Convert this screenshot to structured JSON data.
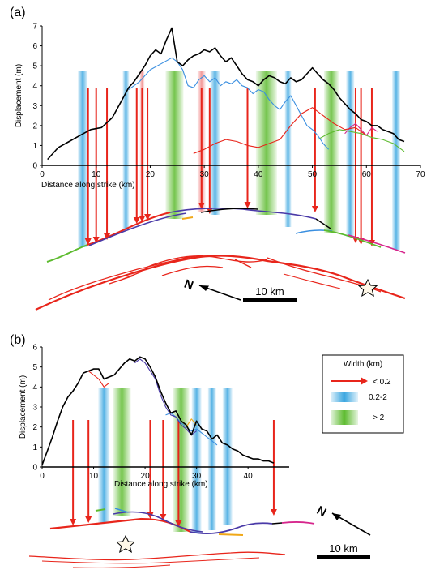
{
  "panels": [
    {
      "id": "a",
      "panel_label": "(a)",
      "scale_label": "10 km",
      "north_label": "N"
    },
    {
      "id": "b",
      "panel_label": "(b)",
      "scale_label": "10 km",
      "north_label": "N"
    }
  ],
  "legend": {
    "title": "Width (km)",
    "items": [
      {
        "label": "< 0.2",
        "kind": "arrow",
        "color": "#e8251b"
      },
      {
        "label": "0.2-2",
        "kind": "band",
        "color": "#3aa6e0"
      },
      {
        "label": "> 2",
        "kind": "band",
        "color": "#5dbb2f"
      }
    ]
  },
  "colors": {
    "total": "#000000",
    "red": "#e8251b",
    "blue": "#3a8fe0",
    "green": "#5dbb2f",
    "purple": "#4a3aa8",
    "orange": "#f0a818",
    "magenta": "#d6268c",
    "fault_map": "#e8251b"
  },
  "chart_data": [
    {
      "type": "line",
      "panel": "a",
      "xlabel": "Distance along strike (km)",
      "ylabel": "Displacement (m)",
      "xlim": [
        0,
        70
      ],
      "ylim": [
        0,
        7
      ],
      "xticks": [
        0,
        10,
        20,
        30,
        40,
        50,
        60,
        70
      ],
      "yticks": [
        0,
        1,
        2,
        3,
        4,
        5,
        6,
        7
      ],
      "series": [
        {
          "color": "#000000",
          "x": [
            1,
            3,
            5,
            7,
            9,
            11,
            13,
            15,
            16,
            17,
            18,
            19,
            20,
            21,
            22,
            23,
            24,
            25,
            26,
            27,
            28,
            29,
            30,
            31,
            32,
            33,
            34,
            35,
            36,
            37,
            38,
            39,
            40,
            41,
            42,
            43,
            44,
            45,
            46,
            47,
            48,
            49,
            50,
            51,
            52,
            53,
            54,
            55,
            56,
            57,
            58,
            59,
            60,
            61,
            62,
            63,
            64,
            65,
            66,
            67
          ],
          "y": [
            0.3,
            0.9,
            1.2,
            1.5,
            1.8,
            1.9,
            2.4,
            3.4,
            3.9,
            4.2,
            4.6,
            5.0,
            5.5,
            5.8,
            5.6,
            6.3,
            6.9,
            5.2,
            5.0,
            5.3,
            5.5,
            5.6,
            5.8,
            5.7,
            5.9,
            5.5,
            5.2,
            5.4,
            5.0,
            4.6,
            4.3,
            4.2,
            4.0,
            4.3,
            4.5,
            4.4,
            4.2,
            4.1,
            4.4,
            4.2,
            4.3,
            4.6,
            4.9,
            4.6,
            4.3,
            4.1,
            3.8,
            3.4,
            3.1,
            2.8,
            2.6,
            2.3,
            2.2,
            2.0,
            2.0,
            1.8,
            1.7,
            1.6,
            1.3,
            1.2
          ]
        },
        {
          "color": "#3a8fe0",
          "x": [
            16,
            18,
            20,
            22,
            24,
            25,
            26,
            27,
            28,
            29,
            30,
            31,
            32,
            33,
            34,
            35,
            36,
            37,
            38,
            39,
            40,
            41,
            42,
            43,
            44,
            45,
            46,
            47,
            48,
            49,
            50,
            51,
            52,
            53
          ],
          "y": [
            3.8,
            4.2,
            4.8,
            5.1,
            5.4,
            5.2,
            4.8,
            4.0,
            3.9,
            4.3,
            4.5,
            4.2,
            4.4,
            4.0,
            4.2,
            4.1,
            4.3,
            4.0,
            3.9,
            3.6,
            3.8,
            3.7,
            3.3,
            3.0,
            2.8,
            3.2,
            3.5,
            3.0,
            2.5,
            2.0,
            1.8,
            1.5,
            1.1,
            0.8
          ]
        },
        {
          "color": "#e8251b",
          "x": [
            28,
            30,
            32,
            34,
            36,
            38,
            40,
            42,
            44,
            46,
            48,
            50,
            52,
            54,
            56,
            58,
            60
          ],
          "y": [
            0.6,
            0.8,
            1.1,
            1.3,
            1.2,
            1.0,
            0.9,
            1.1,
            1.3,
            2.0,
            2.6,
            2.9,
            2.5,
            2.1,
            1.8,
            1.9,
            1.5
          ]
        },
        {
          "color": "#5dbb2f",
          "x": [
            51,
            53,
            55,
            57,
            59,
            61,
            63,
            65,
            66,
            67
          ],
          "y": [
            1.3,
            1.6,
            1.8,
            1.7,
            1.6,
            1.4,
            1.3,
            1.1,
            0.9,
            0.7
          ]
        },
        {
          "color": "#d6268c",
          "x": [
            56,
            57,
            58,
            59,
            60,
            61,
            62
          ],
          "y": [
            1.6,
            1.9,
            2.1,
            1.8,
            1.5,
            1.9,
            1.7
          ]
        }
      ]
    },
    {
      "type": "line",
      "panel": "b",
      "xlabel": "Distance along strike (km)",
      "ylabel": "Displacement (m)",
      "xlim": [
        0,
        48
      ],
      "ylim": [
        0,
        6
      ],
      "xticks": [
        0,
        10,
        20,
        30,
        40
      ],
      "yticks": [
        0,
        1,
        2,
        3,
        4,
        5,
        6
      ],
      "series": [
        {
          "color": "#000000",
          "x": [
            0,
            1,
            2,
            3,
            4,
            5,
            6,
            7,
            8,
            9,
            10,
            11,
            12,
            13,
            14,
            15,
            16,
            17,
            18,
            19,
            20,
            21,
            22,
            23,
            24,
            25,
            26,
            27,
            28,
            29,
            30,
            31,
            32,
            33,
            34,
            35,
            36,
            37,
            38,
            39,
            40,
            41,
            42,
            43,
            44,
            45
          ],
          "y": [
            0.1,
            0.8,
            1.5,
            2.3,
            3.0,
            3.5,
            3.8,
            4.2,
            4.7,
            4.8,
            4.9,
            4.9,
            4.4,
            4.5,
            4.6,
            4.9,
            5.2,
            5.4,
            5.3,
            5.5,
            5.4,
            5.0,
            4.5,
            3.8,
            3.2,
            2.7,
            2.8,
            2.3,
            2.1,
            1.6,
            2.3,
            1.9,
            1.8,
            1.4,
            1.6,
            1.2,
            1.1,
            0.9,
            0.8,
            0.6,
            0.5,
            0.4,
            0.4,
            0.3,
            0.3,
            0.2
          ]
        },
        {
          "color": "#e8251b",
          "x": [
            9,
            10,
            11,
            12,
            13
          ],
          "y": [
            4.8,
            4.6,
            4.4,
            4.0,
            4.2
          ]
        },
        {
          "color": "#4a3aa8",
          "x": [
            18,
            19,
            20,
            21,
            22,
            23,
            24,
            25,
            26,
            27,
            28,
            29,
            30
          ],
          "y": [
            5.2,
            5.4,
            5.2,
            4.8,
            4.4,
            3.6,
            3.0,
            2.6,
            2.5,
            2.1,
            1.9,
            1.6,
            1.8
          ]
        },
        {
          "color": "#f0a818",
          "x": [
            28,
            29,
            30
          ],
          "y": [
            2.0,
            2.4,
            2.1
          ]
        },
        {
          "color": "#3a8fe0",
          "x": [
            24,
            25,
            26,
            27,
            28,
            29,
            30,
            31,
            32,
            33,
            34
          ],
          "y": [
            2.6,
            2.7,
            2.5,
            2.2,
            2.0,
            1.8,
            1.9,
            1.7,
            1.5,
            1.3,
            1.1
          ]
        }
      ]
    }
  ]
}
